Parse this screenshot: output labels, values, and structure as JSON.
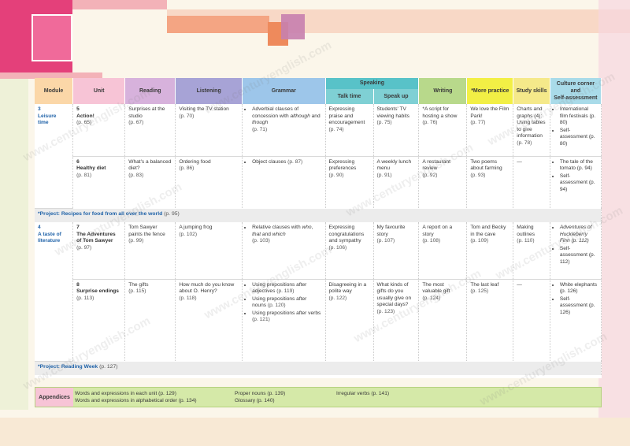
{
  "watermark": "www.centuryenglish.com",
  "headers": {
    "module": "Module",
    "unit": "Unit",
    "reading": "Reading",
    "listening": "Listening",
    "grammar": "Grammar",
    "speaking": "Speaking",
    "talk_time": "Talk time",
    "speak_up": "Speak up",
    "writing": "Writing",
    "more_practice": "*More practice",
    "study_skills": "Study skills",
    "culture_line1": "Culture corner",
    "culture_line2": "and",
    "culture_line3": "Self-assessment"
  },
  "modules": [
    {
      "number": "3",
      "title_line1": "Leisure",
      "title_line2": "time",
      "units": [
        {
          "unit_no": "5",
          "unit_title": "Action!",
          "unit_page": "(p. 65)",
          "reading": "Surprises at the studio",
          "reading_page": "(p. 67)",
          "listening": "Visiting the TV station",
          "listening_page": "(p. 70)",
          "grammar": [
            {
              "pre": "Adverbial clauses of concession with ",
              "it1": "although",
              "mid": " and ",
              "it2": "though",
              "page": "(p. 71)"
            }
          ],
          "talk_time": "Expressing praise and encouragement",
          "talk_time_page": "(p. 74)",
          "speak_up": "Students' TV viewing habits",
          "speak_up_page": "(p. 75)",
          "writing": "*A script for hosting a show",
          "writing_page": "(p. 76)",
          "more_practice": "We love the Film Park!",
          "more_practice_page": "(p. 77)",
          "study_skills": "Charts and graphs (4): Using tables to give information",
          "study_skills_page": "(p. 78)",
          "culture": [
            "International film festivals (p. 80)",
            "Self-assessment (p. 80)"
          ]
        },
        {
          "unit_no": "6",
          "unit_title": "Healthy diet",
          "unit_page": "(p. 81)",
          "reading": "What's a balanced diet?",
          "reading_page": "(p. 83)",
          "listening": "Ordering food",
          "listening_page": "(p. 86)",
          "grammar": [
            {
              "pre": "Object clauses",
              "page": "(p. 87)"
            }
          ],
          "talk_time": "Expressing preferences",
          "talk_time_page": "(p. 90)",
          "speak_up": "A weekly lunch menu",
          "speak_up_page": "(p. 91)",
          "writing": "A restaurant review",
          "writing_page": "(p. 92)",
          "more_practice": "Two poems about farming",
          "more_practice_page": "(p. 93)",
          "study_skills": "—",
          "study_skills_page": "",
          "culture": [
            "The tale of the tomato (p. 94)",
            "Self-assessment (p. 94)"
          ]
        }
      ],
      "project": "*Project: Recipes for food from all over the world",
      "project_page": "(p. 95)"
    },
    {
      "number": "4",
      "title_line1": "A taste of",
      "title_line2": "literature",
      "units": [
        {
          "unit_no": "7",
          "unit_title": "The Adventures of Tom Sawyer",
          "unit_page": "(p. 97)",
          "reading": "Tom Sawyer paints the fence",
          "reading_page": "(p. 99)",
          "listening": "A jumping frog",
          "listening_page": "(p. 102)",
          "grammar": [
            {
              "pre": "Relative clauses with ",
              "it1": "who",
              "mid": ", ",
              "it2": "that",
              "post": " and ",
              "it3": "which",
              "page": "(p. 103)"
            }
          ],
          "talk_time": "Expressing congratulations and sympathy",
          "talk_time_page": "(p. 106)",
          "speak_up": "My favourite story",
          "speak_up_page": "(p. 107)",
          "writing": "A report on a story",
          "writing_page": "(p. 108)",
          "more_practice": "Tom and Becky in the cave",
          "more_practice_page": "(p. 109)",
          "study_skills": "Making outlines",
          "study_skills_page": "(p. 110)",
          "culture": [
            "Adventures of Huckleberry Finn (p. 112)",
            "Self-assessment (p. 112)"
          ]
        },
        {
          "unit_no": "8",
          "unit_title": "Surprise endings",
          "unit_page": "(p. 113)",
          "reading": "The gifts",
          "reading_page": "(p. 115)",
          "listening": "How much do you know about O. Henry?",
          "listening_page": "(p. 118)",
          "grammar": [
            {
              "pre": "Using prepositions after adjectives",
              "page": "(p. 119)"
            },
            {
              "pre": "Using prepositions after nouns",
              "page": "(p. 120)"
            },
            {
              "pre": "Using prepositions after verbs",
              "page": "(p. 121)"
            }
          ],
          "talk_time": "Disagreeing in a polite way",
          "talk_time_page": "(p. 122)",
          "speak_up": "What kinds of gifts do you usually give on special days?",
          "speak_up_page": "(p. 123)",
          "writing": "The most valuable gift",
          "writing_page": "(p. 124)",
          "more_practice": "The last leaf",
          "more_practice_page": "(p. 125)",
          "study_skills": "—",
          "study_skills_page": "",
          "culture": [
            "White elephants (p. 126)",
            "Self-assessment (p. 126)"
          ]
        }
      ],
      "project": "*Project: Reading Week",
      "project_page": "(p. 127)"
    }
  ],
  "appendices": {
    "label": "Appendices",
    "col1": [
      "Words and expressions in each unit (p. 129)",
      "Words and expressions in alphabetical order (p. 134)"
    ],
    "col2": [
      "Proper nouns (p. 139)",
      "Glossary (p. 140)"
    ],
    "col3": [
      "Irregular verbs (p. 141)"
    ]
  }
}
